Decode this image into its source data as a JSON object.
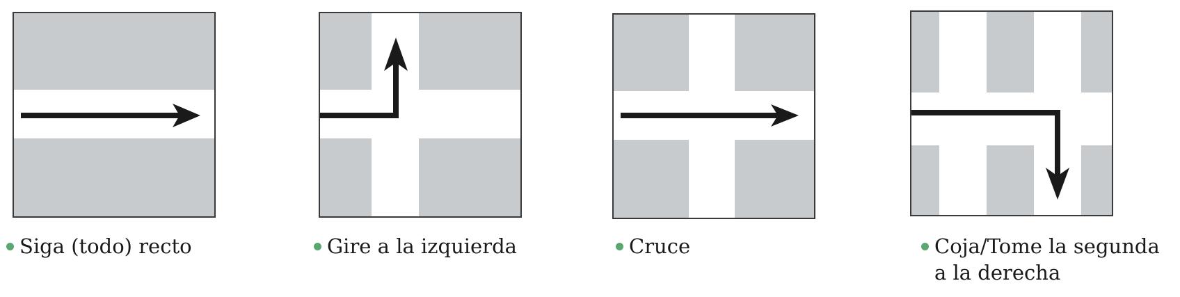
{
  "colors": {
    "block": "#c7cbcd",
    "road": "#ffffff",
    "frame": "#3a3a3a",
    "arrow": "#1a1a1a",
    "bullet": "#5aa870"
  },
  "panels": [
    {
      "icon": "straight-arrow-icon",
      "caption": [
        "Siga (todo) recto"
      ]
    },
    {
      "icon": "turn-left-arrow-icon",
      "caption": [
        "Gire a la izquierda"
      ]
    },
    {
      "icon": "crossing-arrow-icon",
      "caption": [
        "Cruce"
      ]
    },
    {
      "icon": "second-right-arrow-icon",
      "caption": [
        "Coja/Tome la segunda",
        "a la derecha"
      ]
    }
  ]
}
